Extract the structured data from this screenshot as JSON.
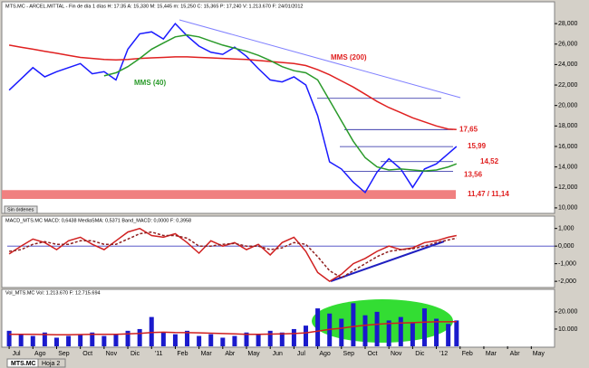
{
  "chart_data": [
    {
      "type": "line",
      "header": "MTS.MC - ARCEL.MITTAL - Fin de día 1 días H: 17:35 A: 15,330 M: 15,445 m: 15,250 C: 15,365 P: 17,240 V: 1.213.670 F: 24/01/2012",
      "x": [
        0,
        0.5,
        1,
        1.5,
        2,
        2.5,
        3,
        3.5,
        4,
        4.5,
        5,
        5.5,
        6,
        6.5,
        7,
        7.5,
        8,
        8.5,
        9,
        9.5,
        10,
        10.5,
        11,
        11.5,
        12,
        12.5,
        13,
        13.5,
        14,
        14.5,
        15,
        15.5,
        16,
        16.5,
        17,
        17.5,
        18,
        18.5,
        18.85
      ],
      "xlim": [
        -0.08,
        22.98
      ],
      "ylim": [
        9550,
        29600
      ],
      "yticks": [
        {
          "value": 10000,
          "label": "10,000"
        },
        {
          "value": 12000,
          "label": "12,000"
        },
        {
          "value": 14000,
          "label": "14,000"
        },
        {
          "value": 16000,
          "label": "16,000"
        },
        {
          "value": 18000,
          "label": "18,000"
        },
        {
          "value": 20000,
          "label": "20,000"
        },
        {
          "value": 22000,
          "label": "22,000"
        },
        {
          "value": 24000,
          "label": "24,000"
        },
        {
          "value": 26000,
          "label": "26,000"
        },
        {
          "value": 28000,
          "label": "28,000"
        }
      ],
      "series": [
        {
          "color": "#1a1aff",
          "values": [
            21500,
            22600,
            23700,
            22800,
            23300,
            23700,
            24100,
            23100,
            23300,
            22500,
            25500,
            27000,
            27200,
            26500,
            28000,
            26800,
            25800,
            25200,
            25000,
            25700,
            24800,
            23600,
            22500,
            22300,
            22800,
            22000,
            19000,
            14500,
            13800,
            12500,
            11500,
            13500,
            14800,
            13800,
            12000,
            13800,
            14300,
            15300,
            16000
          ]
        },
        {
          "name": "MMS (200)",
          "color": "#e02020",
          "values": [
            25900,
            25700,
            25500,
            25300,
            25100,
            24900,
            24700,
            24600,
            24500,
            24450,
            24500,
            24600,
            24650,
            24700,
            24750,
            24750,
            24700,
            24650,
            24600,
            24550,
            24500,
            24400,
            24300,
            24200,
            24100,
            23900,
            23500,
            23000,
            22400,
            21800,
            21100,
            20400,
            19800,
            19300,
            18800,
            18400,
            18000,
            17700,
            17650
          ]
        },
        {
          "name": "MMS (40)",
          "color": "#2a9a2a",
          "values": [
            null,
            null,
            null,
            null,
            null,
            null,
            null,
            null,
            22900,
            23200,
            23800,
            24600,
            25500,
            26100,
            26700,
            26900,
            26700,
            26300,
            25900,
            25600,
            25300,
            24900,
            24400,
            23800,
            23400,
            23200,
            22500,
            20500,
            18500,
            16500,
            14900,
            14000,
            13700,
            13800,
            13700,
            13600,
            13700,
            14000,
            14300
          ]
        }
      ],
      "levels": [
        {
          "value": 17650,
          "label": "17,65"
        },
        {
          "value": 15990,
          "label": "15,99"
        },
        {
          "value": 14520,
          "label": "14,52"
        },
        {
          "value": 13560,
          "label": "13,56"
        },
        {
          "value": 20700
        }
      ],
      "band": {
        "low": 11140,
        "high": 11470,
        "label": "11,47 / 11,14",
        "color": "#f08080"
      }
    },
    {
      "type": "line",
      "header": "MACD_MTS.MC  MACD: 0,6438  MediaSMA: 0,5371  Band_MACD: 0,0000  F: 0,3958",
      "x": [
        0,
        0.5,
        1,
        1.5,
        2,
        2.5,
        3,
        3.5,
        4,
        4.5,
        5,
        5.5,
        6,
        6.5,
        7,
        7.5,
        8,
        8.5,
        9,
        9.5,
        10,
        10.5,
        11,
        11.5,
        12,
        12.5,
        13,
        13.5,
        14,
        14.5,
        15,
        15.5,
        16,
        16.5,
        17,
        17.5,
        18,
        18.5,
        18.85
      ],
      "xlim": [
        -0.08,
        22.98
      ],
      "ylim": [
        -2250,
        1600
      ],
      "yticks": [
        {
          "value": -2000,
          "label": "-2,000"
        },
        {
          "value": -1000,
          "label": "-1,000"
        },
        {
          "value": 0,
          "label": "0,000"
        },
        {
          "value": 1000,
          "label": "1,000"
        }
      ],
      "zero_line": true,
      "series": [
        {
          "name": "MACD",
          "color": "#d02020",
          "values": [
            -450,
            0,
            400,
            200,
            -200,
            300,
            500,
            100,
            -200,
            300,
            800,
            1000,
            600,
            500,
            700,
            200,
            -400,
            300,
            0,
            200,
            -200,
            100,
            -500,
            200,
            500,
            -300,
            -1500,
            -2000,
            -1600,
            -1000,
            -700,
            -300,
            0,
            -200,
            -100,
            200,
            300,
            500,
            600
          ]
        },
        {
          "name": "MediaSMA",
          "color": "#902020",
          "dashed": true,
          "values": [
            -300,
            -200,
            100,
            250,
            100,
            100,
            300,
            300,
            100,
            100,
            400,
            700,
            800,
            600,
            600,
            450,
            0,
            0,
            100,
            150,
            0,
            0,
            -200,
            -100,
            200,
            100,
            -600,
            -1400,
            -1800,
            -1400,
            -1000,
            -600,
            -300,
            -200,
            -150,
            0,
            200,
            350,
            450
          ]
        }
      ]
    },
    {
      "type": "bar",
      "header": "Vol_MTS.MC  Vol: 1.213.670  F: 12.715.694",
      "x": [
        0,
        0.5,
        1,
        1.5,
        2,
        2.5,
        3,
        3.5,
        4,
        4.5,
        5,
        5.5,
        6,
        6.5,
        7,
        7.5,
        8,
        8.5,
        9,
        9.5,
        10,
        10.5,
        11,
        11.5,
        12,
        12.5,
        13,
        13.5,
        14,
        14.5,
        15,
        15.5,
        16,
        16.5,
        17,
        17.5,
        18,
        18.5,
        18.85
      ],
      "xlim": [
        -0.08,
        22.98
      ],
      "ylim": [
        0,
        32000
      ],
      "yticks": [
        {
          "value": 10000,
          "label": "10.000"
        },
        {
          "value": 20000,
          "label": "20.000"
        }
      ],
      "xticks": [
        {
          "value": 0,
          "label": "Jul"
        },
        {
          "value": 1,
          "label": "Ago"
        },
        {
          "value": 2,
          "label": "Sep"
        },
        {
          "value": 3,
          "label": "Oct"
        },
        {
          "value": 4,
          "label": "Nov"
        },
        {
          "value": 5,
          "label": "Dic"
        },
        {
          "value": 6,
          "label": "'11"
        },
        {
          "value": 7,
          "label": "Feb"
        },
        {
          "value": 8,
          "label": "Mar"
        },
        {
          "value": 9,
          "label": "Abr"
        },
        {
          "value": 10,
          "label": "May"
        },
        {
          "value": 11,
          "label": "Jun"
        },
        {
          "value": 12,
          "label": "Jul"
        },
        {
          "value": 13,
          "label": "Ago"
        },
        {
          "value": 14,
          "label": "Sep"
        },
        {
          "value": 15,
          "label": "Oct"
        },
        {
          "value": 16,
          "label": "Nov"
        },
        {
          "value": 17,
          "label": "Dic"
        },
        {
          "value": 18,
          "label": "'12"
        },
        {
          "value": 19,
          "label": "Feb"
        },
        {
          "value": 20,
          "label": "Mar"
        },
        {
          "value": 21,
          "label": "Abr"
        },
        {
          "value": 22,
          "label": "May"
        }
      ],
      "series": [
        {
          "type": "bar",
          "color": "#1a1acc",
          "values": [
            9000,
            7000,
            6000,
            8000,
            5000,
            6000,
            7000,
            8000,
            6000,
            7000,
            9000,
            10000,
            17000,
            8000,
            7000,
            9000,
            6000,
            7000,
            5000,
            6000,
            8000,
            7000,
            9000,
            8000,
            10000,
            12000,
            22000,
            19000,
            16000,
            25000,
            18000,
            20000,
            15000,
            17000,
            14000,
            22000,
            16000,
            13000,
            15000
          ]
        },
        {
          "type": "line",
          "color": "#d02020",
          "values": [
            7000,
            7000,
            7000,
            6800,
            6700,
            6700,
            6800,
            7000,
            7000,
            7000,
            7200,
            7500,
            8000,
            8200,
            8000,
            7900,
            7800,
            7600,
            7400,
            7200,
            7000,
            7000,
            7100,
            7200,
            7400,
            7800,
            8800,
            9800,
            10500,
            11500,
            12200,
            12800,
            13200,
            13500,
            13700,
            14000,
            14200,
            14200,
            14300
          ]
        }
      ]
    }
  ],
  "ui": {
    "button": "Sin órdenes",
    "tabs": [
      "MTS.MC",
      "Hoja 2"
    ]
  }
}
